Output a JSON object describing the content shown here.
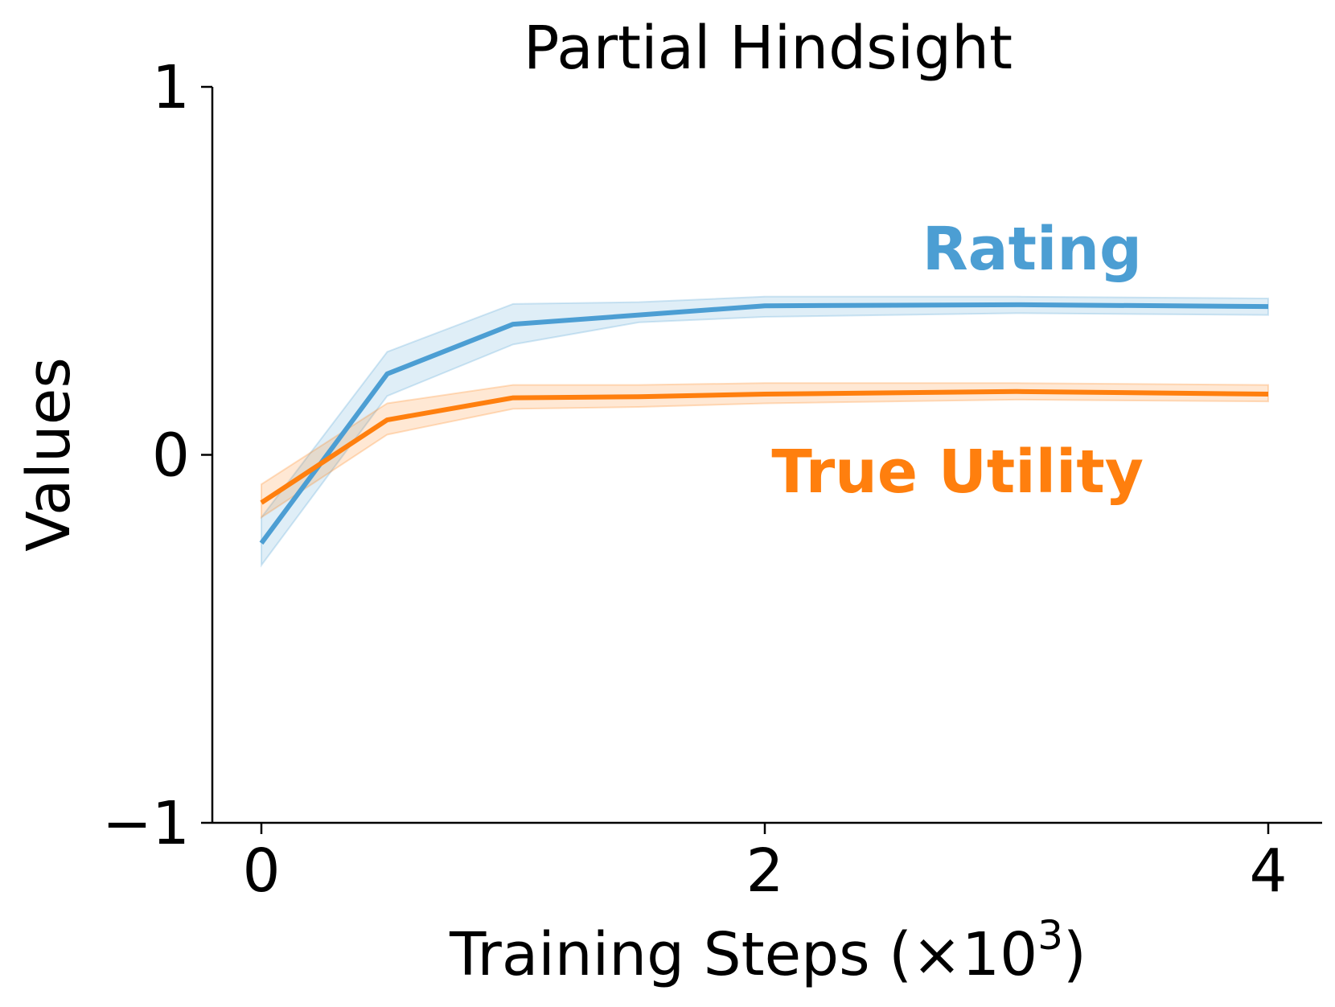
{
  "chart_data": {
    "type": "line",
    "title": "Partial Hindsight",
    "xlabel": "Training Steps (×10",
    "xlabel_exponent": "3",
    "xlabel_close": ")",
    "ylabel": "Values",
    "xlim": [
      -0.1,
      4.1
    ],
    "ylim": [
      -1,
      1
    ],
    "xticks": [
      0,
      2,
      4
    ],
    "xtick_labels": [
      "0",
      "2",
      "4"
    ],
    "yticks": [
      -1,
      0,
      1
    ],
    "ytick_labels": [
      "−1",
      "0",
      "1"
    ],
    "grid": false,
    "series": [
      {
        "name": "Rating",
        "color": "#4c9ed3",
        "x": [
          0,
          0.5,
          1.0,
          1.5,
          2.0,
          3.0,
          4.0
        ],
        "y": [
          -0.24,
          0.22,
          0.355,
          0.38,
          0.405,
          0.408,
          0.403
        ],
        "y_lower": [
          -0.3,
          0.16,
          0.3,
          0.36,
          0.375,
          0.385,
          0.38
        ],
        "y_upper": [
          -0.17,
          0.28,
          0.41,
          0.415,
          0.43,
          0.43,
          0.425
        ]
      },
      {
        "name": "True Utility",
        "color": "#ff7f0e",
        "x": [
          0,
          0.5,
          1.0,
          1.5,
          2.0,
          3.0,
          4.0
        ],
        "y": [
          -0.13,
          0.095,
          0.155,
          0.158,
          0.165,
          0.172,
          0.165
        ],
        "y_lower": [
          -0.17,
          0.055,
          0.125,
          0.13,
          0.14,
          0.15,
          0.145
        ],
        "y_upper": [
          -0.08,
          0.14,
          0.19,
          0.19,
          0.195,
          0.195,
          0.19
        ]
      }
    ]
  }
}
